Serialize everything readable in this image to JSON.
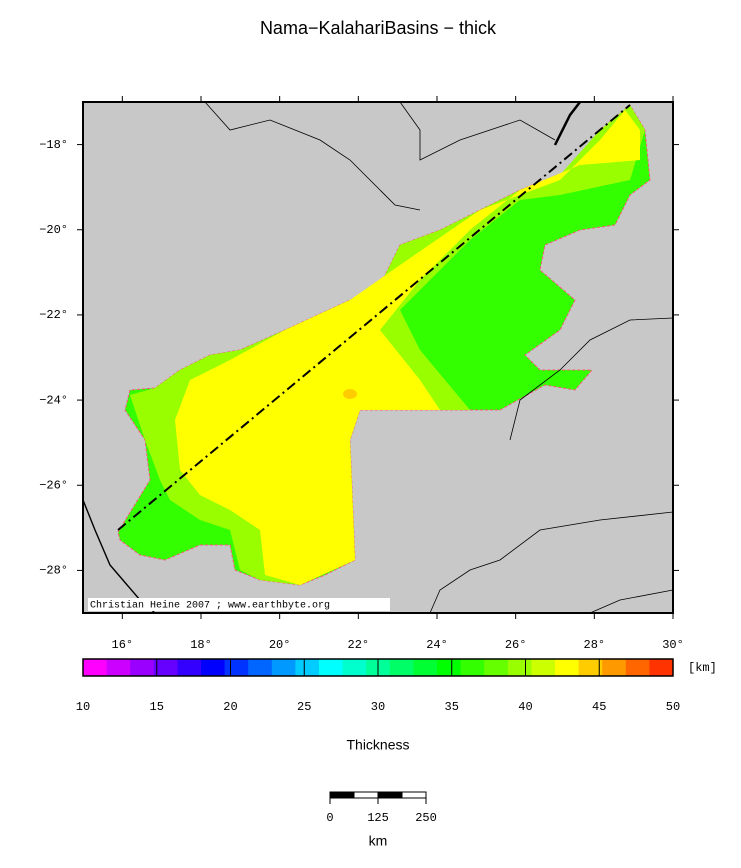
{
  "title": "Nama−KalahariBasins − thick",
  "map": {
    "xlim": [
      15,
      30
    ],
    "ylim": [
      -29,
      -17
    ],
    "xticks": [
      {
        "value": 16,
        "label": "16°"
      },
      {
        "value": 18,
        "label": "18°"
      },
      {
        "value": 20,
        "label": "20°"
      },
      {
        "value": 22,
        "label": "22°"
      },
      {
        "value": 24,
        "label": "24°"
      },
      {
        "value": 26,
        "label": "26°"
      },
      {
        "value": 28,
        "label": "28°"
      },
      {
        "value": 30,
        "label": "30°"
      }
    ],
    "yticks": [
      {
        "value": -18,
        "label": "−18°"
      },
      {
        "value": -20,
        "label": "−20°"
      },
      {
        "value": -22,
        "label": "−22°"
      },
      {
        "value": -24,
        "label": "−24°"
      },
      {
        "value": -26,
        "label": "−26°"
      },
      {
        "value": -28,
        "label": "−28°"
      }
    ],
    "credit": "Christian Heine 2007 ; www.earthbyte.org"
  },
  "colorbar": {
    "lim": [
      10,
      50
    ],
    "ticks": [
      10,
      15,
      20,
      25,
      30,
      35,
      40,
      45,
      50
    ],
    "unit": "[km]",
    "label": "Thickness",
    "colors": [
      "#ff00ff",
      "#cc00ff",
      "#9900ff",
      "#6600ff",
      "#3300ff",
      "#0000ff",
      "#0033ff",
      "#0066ff",
      "#0099ff",
      "#00ccff",
      "#00ffff",
      "#00ffcc",
      "#00ff99",
      "#00ff66",
      "#00ff33",
      "#00ff00",
      "#33ff00",
      "#66ff00",
      "#99ff00",
      "#ccff00",
      "#ffff00",
      "#ffcc00",
      "#ff9900",
      "#ff6600",
      "#ff3300"
    ]
  },
  "scalebar": {
    "ticks": [
      0,
      125,
      250
    ],
    "unit": "km"
  }
}
